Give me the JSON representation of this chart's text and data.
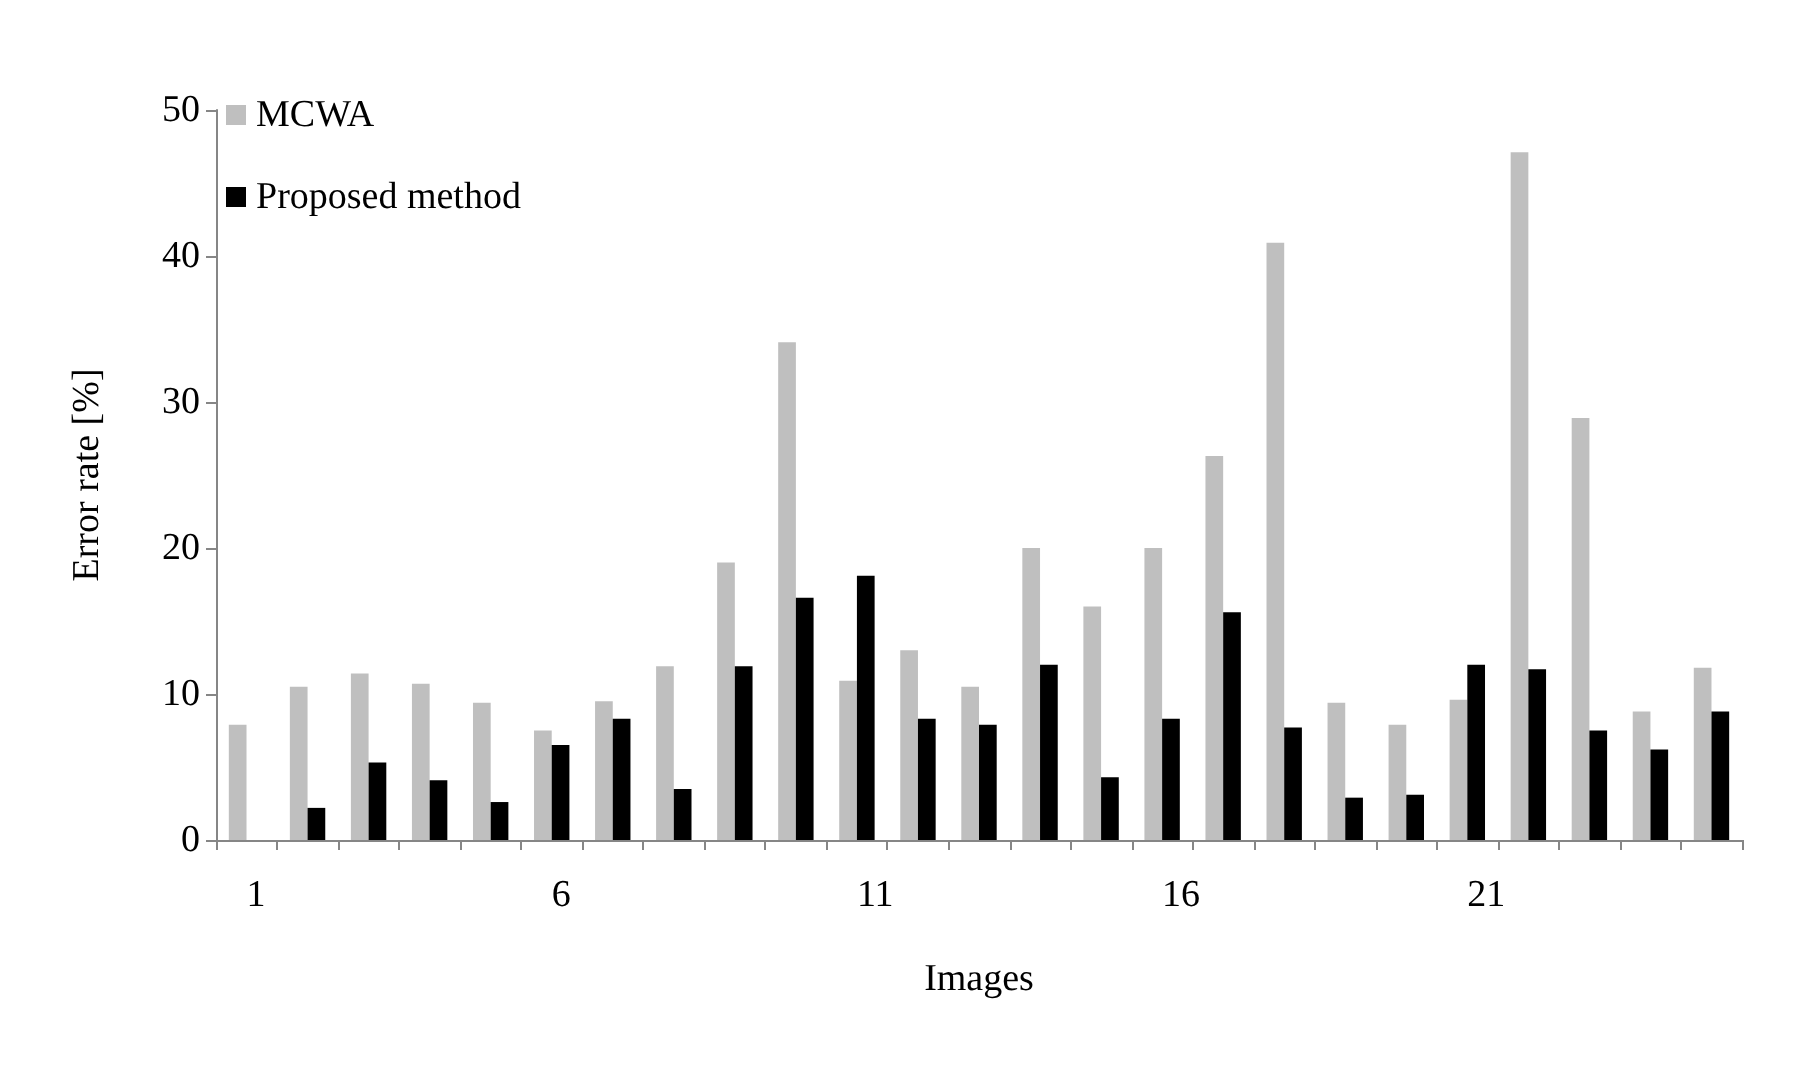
{
  "chart_data": {
    "type": "bar",
    "xlabel": "Images",
    "ylabel": "Error rate [%]",
    "categories": [
      "1",
      null,
      null,
      null,
      null,
      "6",
      null,
      null,
      null,
      null,
      "11",
      null,
      null,
      null,
      null,
      "16",
      null,
      null,
      null,
      null,
      "21",
      null,
      null,
      null,
      null
    ],
    "series": [
      {
        "name": "MCWA",
        "color": "#bfbfbf",
        "values": [
          7.9,
          10.5,
          11.4,
          10.7,
          9.4,
          7.5,
          9.5,
          11.9,
          19.0,
          34.1,
          10.9,
          13.0,
          10.5,
          20.0,
          16.0,
          20.0,
          26.3,
          40.9,
          9.4,
          7.9,
          9.6,
          47.1,
          28.9,
          8.8,
          11.8
        ]
      },
      {
        "name": "Proposed method",
        "color": "#000000",
        "values": [
          0,
          2.2,
          5.3,
          4.1,
          2.6,
          6.5,
          8.3,
          3.5,
          11.9,
          16.6,
          18.1,
          8.3,
          7.9,
          12.0,
          4.3,
          8.3,
          15.6,
          7.7,
          2.9,
          3.1,
          12.0,
          11.7,
          7.5,
          6.2,
          8.8
        ]
      }
    ],
    "ylim": [
      0,
      50
    ],
    "yticks": [
      0,
      10,
      20,
      30,
      40,
      50
    ],
    "grid": false,
    "legend": "top left"
  }
}
